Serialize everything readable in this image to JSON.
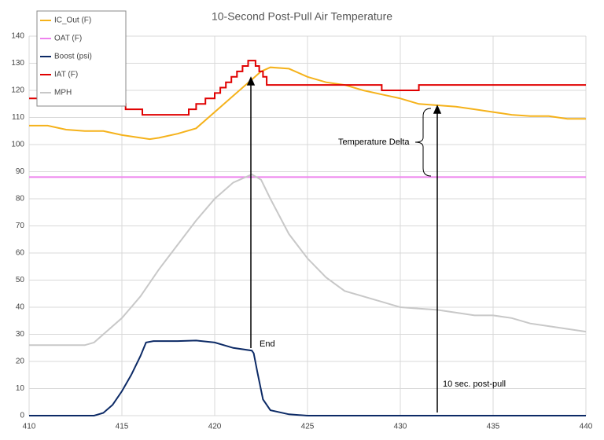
{
  "chart_data": {
    "type": "line",
    "title": "10-Second Post-Pull Air Temperature",
    "xlim": [
      410,
      440
    ],
    "xticks": [
      410,
      415,
      420,
      425,
      430,
      435,
      440
    ],
    "ylim": [
      0,
      140
    ],
    "yticks": [
      0,
      10,
      20,
      30,
      40,
      50,
      60,
      70,
      80,
      90,
      100,
      110,
      120,
      130,
      140
    ],
    "grid": true,
    "legend": "top-left",
    "annotations": [
      "Temperature Delta",
      "End",
      "10 sec. post-pull"
    ],
    "series": [
      {
        "name": "IC_Out (F)",
        "color": "#f5b21b",
        "x": [
          410,
          411,
          412,
          413,
          414,
          415,
          416,
          416.5,
          417,
          418,
          419,
          420,
          421,
          422,
          422.5,
          423,
          424,
          425,
          426,
          427,
          428,
          429,
          430,
          431,
          432,
          433,
          434,
          435,
          436,
          437,
          438,
          439,
          440
        ],
        "values": [
          107,
          107,
          105.5,
          105,
          105,
          103.5,
          102.5,
          102,
          102.5,
          104,
          106,
          112,
          118,
          124,
          127,
          128.5,
          128,
          125,
          123,
          122,
          120,
          118.5,
          117,
          115,
          114.5,
          114,
          113,
          112,
          111,
          110.5,
          110.5,
          109.5,
          109.5
        ]
      },
      {
        "name": "OAT (F)",
        "color": "#ee82ee",
        "x": [
          410,
          440
        ],
        "values": [
          88,
          88
        ]
      },
      {
        "name": "Boost (psi)",
        "color": "#0c2a66",
        "x": [
          410,
          413.5,
          414,
          414.5,
          415,
          415.5,
          416,
          416.3,
          416.7,
          418,
          419,
          420,
          421,
          422,
          422.1,
          422.3,
          422.6,
          423,
          424,
          425,
          440
        ],
        "values": [
          0,
          0,
          1,
          4,
          9,
          15,
          22,
          27,
          27.5,
          27.5,
          27.7,
          27,
          25,
          24,
          23,
          16,
          6,
          2,
          0.5,
          0,
          0
        ]
      },
      {
        "name": "IAT (F)",
        "color": "#e00000",
        "x": [
          410,
          414.1,
          414.1,
          415.2,
          415.2,
          416.1,
          416.1,
          418.6,
          418.6,
          419,
          419,
          419.5,
          419.5,
          420,
          420,
          420.3,
          420.3,
          420.6,
          420.6,
          420.9,
          420.9,
          421.2,
          421.2,
          421.5,
          421.5,
          421.8,
          421.8,
          422.2,
          422.2,
          422.4,
          422.4,
          422.6,
          422.6,
          422.8,
          422.8,
          429,
          429,
          431,
          431,
          440
        ],
        "values": [
          117,
          117,
          115,
          115,
          113,
          113,
          111,
          111,
          113,
          113,
          115,
          115,
          117,
          117,
          119,
          119,
          121,
          121,
          123,
          123,
          125,
          125,
          127,
          127,
          129,
          129,
          131,
          131,
          129,
          129,
          127,
          127,
          125,
          125,
          122,
          122,
          120,
          120,
          122,
          122
        ]
      },
      {
        "name": "MPH",
        "color": "#c8c8c8",
        "x": [
          410,
          413,
          413.5,
          414,
          415,
          416,
          417,
          418,
          419,
          420,
          421,
          422,
          422.5,
          423,
          424,
          425,
          426,
          427,
          428,
          429,
          430,
          431,
          432,
          433,
          434,
          435,
          436,
          437,
          438,
          439,
          440
        ],
        "values": [
          26,
          26,
          27,
          30,
          36,
          44,
          54,
          63,
          72,
          80,
          86,
          89,
          87,
          80,
          67,
          58,
          51,
          46,
          44,
          42,
          40,
          39.5,
          39,
          38,
          37,
          37,
          36,
          34,
          33,
          32,
          31
        ]
      }
    ]
  }
}
